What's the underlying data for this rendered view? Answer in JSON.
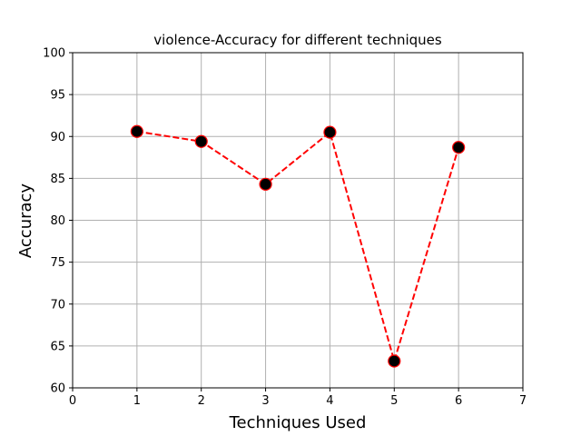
{
  "chart_data": {
    "type": "line",
    "title": "violence-Accuracy for different techniques",
    "xlabel": "Techniques Used",
    "ylabel": "Accuracy",
    "xlim": [
      0,
      7
    ],
    "ylim": [
      60,
      100
    ],
    "xticks": [
      0,
      1,
      2,
      3,
      4,
      5,
      6,
      7
    ],
    "yticks": [
      60,
      65,
      70,
      75,
      80,
      85,
      90,
      95,
      100
    ],
    "grid": true,
    "series": [
      {
        "x": [
          1,
          2,
          3,
          4,
          5,
          6
        ],
        "y": [
          90.6,
          89.4,
          84.3,
          90.5,
          63.2,
          88.7
        ],
        "line_color": "#ff0000",
        "line_style": "dashed",
        "marker_fill": "#000000",
        "marker_edge": "#ff0000"
      }
    ]
  }
}
